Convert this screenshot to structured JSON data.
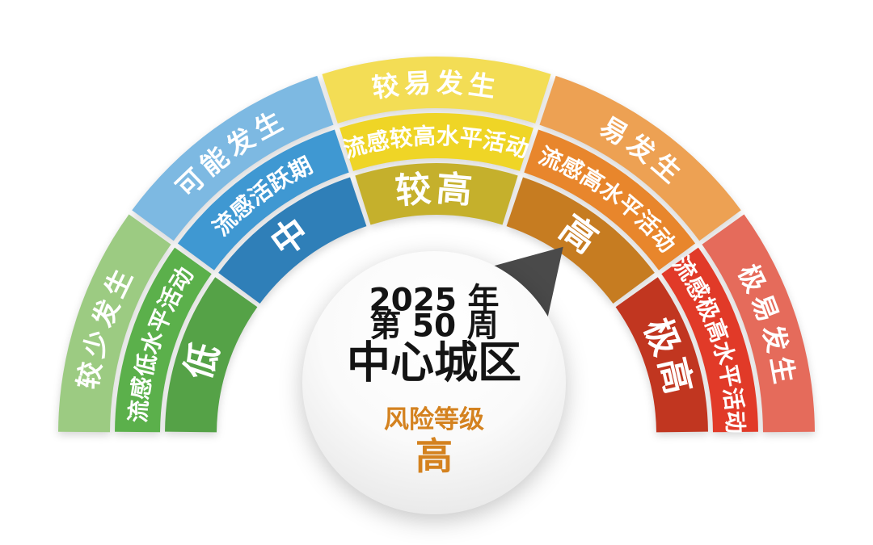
{
  "page": {
    "background_color": "#ffffff"
  },
  "chart_data": {
    "type": "gauge",
    "description_rings": [
      "likelihood (outer)",
      "activity (middle)",
      "level (inner)"
    ],
    "start_angle_deg": 180,
    "end_angle_deg": 0,
    "segments": [
      {
        "level": "低",
        "activity": "流感低水平活动",
        "likelihood": "较少发生",
        "colors": {
          "outer": "#9ccb82",
          "middle": "#5bb04b",
          "inner": "#55a247"
        }
      },
      {
        "level": "中",
        "activity": "流感活跃期",
        "likelihood": "可能发生",
        "colors": {
          "outer": "#7db9e2",
          "middle": "#3f98d2",
          "inner": "#2f7fb8"
        }
      },
      {
        "level": "较高",
        "activity": "流感较高水平活动",
        "likelihood": "较易发生",
        "colors": {
          "outer": "#f3dd55",
          "middle": "#efd526",
          "inner": "#c5b02c"
        }
      },
      {
        "level": "高",
        "activity": "流感高水平活动",
        "likelihood": "易发生",
        "colors": {
          "outer": "#eda153",
          "middle": "#e8862c",
          "inner": "#c67c21"
        }
      },
      {
        "level": "极高",
        "activity": "流感极高水平活动",
        "likelihood": "极易发生",
        "colors": {
          "outer": "#e56b5b",
          "middle": "#e13a28",
          "inner": "#c13620"
        }
      }
    ],
    "pointer": {
      "target_level": "高",
      "color": "#4a4a4a"
    },
    "center": {
      "year_line": "2025 年",
      "week_line": "第 50 周",
      "region": "中心城区",
      "risk_label": "风险等级",
      "risk_value": "高",
      "text_color": "#141414",
      "accent_color": "#d4821f"
    }
  }
}
